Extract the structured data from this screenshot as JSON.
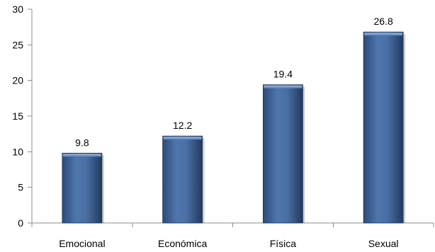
{
  "chart_data": {
    "type": "bar",
    "categories": [
      "Emocional",
      "Económica",
      "Física",
      "Sexual"
    ],
    "values": [
      9.8,
      12.2,
      19.4,
      26.8
    ],
    "data_labels": [
      "9.8",
      "12.2",
      "19.4",
      "26.8"
    ],
    "title": "",
    "xlabel": "",
    "ylabel": "",
    "ylim": [
      0,
      30
    ],
    "yticks": [
      0,
      5,
      10,
      15,
      20,
      25,
      30
    ],
    "grid": false,
    "legend": "none",
    "colors": {
      "bar_main": "#4a6fa5",
      "bar_dark": "#26426b",
      "bar_light": "#7d9cc9",
      "axis": "#8c8c8c"
    }
  }
}
